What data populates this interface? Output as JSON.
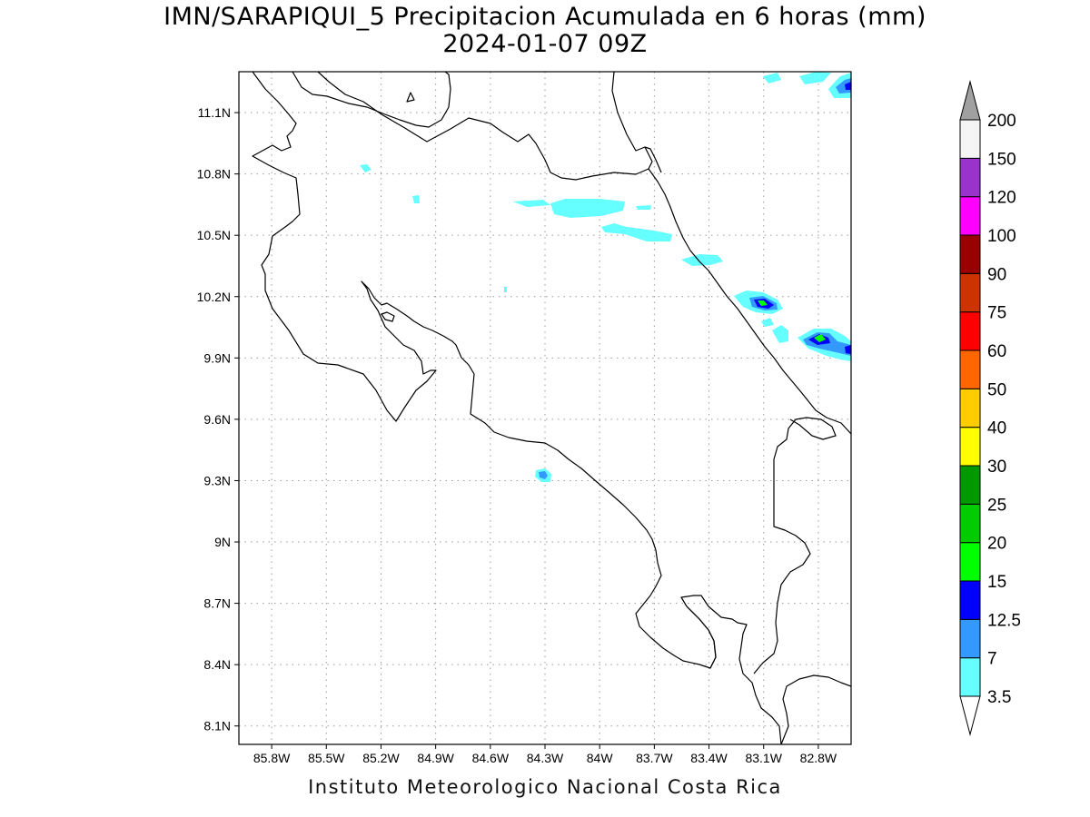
{
  "map": {
    "title": "IMN/SARAPIQUI_5 Precipitacion Acumulada en 6 horas (mm)",
    "subtitle": "2024-01-07 09Z",
    "footer": "Instituto Meteorologico Nacional Costa Rica",
    "lon_range": [
      -85.98,
      -82.62
    ],
    "lat_range": [
      8.01,
      11.3
    ],
    "lat_ticks": [
      "11.1N",
      "10.8N",
      "10.5N",
      "10.2N",
      "9.9N",
      "9.6N",
      "9.3N",
      "9N",
      "8.7N",
      "8.4N",
      "8.1N"
    ],
    "lon_ticks": [
      "85.8W",
      "85.5W",
      "85.2W",
      "84.9W",
      "84.6W",
      "84.3W",
      "84W",
      "83.7W",
      "83.4W",
      "83.1W",
      "82.8W"
    ],
    "grid": "dotted",
    "coastline_color": "#000000"
  },
  "legend": {
    "placement": "right",
    "levels": [
      "3.5",
      "7",
      "12.5",
      "15",
      "20",
      "25",
      "30",
      "40",
      "50",
      "60",
      "75",
      "90",
      "100",
      "120",
      "150",
      "200"
    ],
    "colors": [
      "#66ffff",
      "#3399ff",
      "#0000ff",
      "#00ff00",
      "#00cc00",
      "#009900",
      "#ffff00",
      "#ffcc00",
      "#ff6600",
      "#ff0000",
      "#cc3300",
      "#990000",
      "#ff00ff",
      "#9933cc",
      "#f5f5f5",
      "#a0a0a0"
    ]
  }
}
